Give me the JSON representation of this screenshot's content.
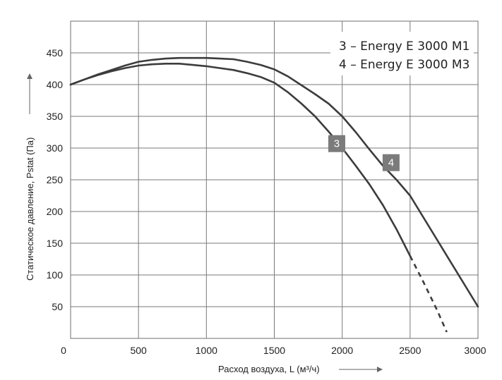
{
  "chart_data": {
    "type": "line",
    "xlabel": "Расход воздуха, L (м³/ч)",
    "ylabel": "Статическое давление, Pstat (Па)",
    "xlim": [
      0,
      3000
    ],
    "ylim": [
      0,
      500
    ],
    "x_ticks": [
      "0",
      "500",
      "1000",
      "1500",
      "2000",
      "2500",
      "3000"
    ],
    "y_ticks": [
      "50",
      "100",
      "150",
      "200",
      "250",
      "300",
      "350",
      "400",
      "450"
    ],
    "grid": true,
    "legend": {
      "placement": "top-right",
      "entries": [
        "3 – Energy E 3000 M1",
        "4 – Energy E 3000 M3"
      ]
    },
    "series": [
      {
        "marker_label": "3",
        "color": "#3c3c3c",
        "x": [
          0,
          100,
          200,
          300,
          400,
          500,
          600,
          700,
          800,
          900,
          1000,
          1100,
          1200,
          1300,
          1400,
          1500,
          1600,
          1700,
          1800,
          1900,
          2000,
          2100,
          2200,
          2300,
          2400,
          2500
        ],
        "y": [
          400,
          408,
          415,
          421,
          426,
          430,
          432,
          433,
          433,
          431,
          429,
          426,
          423,
          418,
          412,
          403,
          388,
          370,
          350,
          326,
          300,
          272,
          243,
          210,
          172,
          130
        ],
        "dashed_x": [
          2500,
          2600,
          2700,
          2770
        ],
        "dashed_y": [
          130,
          88,
          44,
          10
        ]
      },
      {
        "marker_label": "4",
        "color": "#3c3c3c",
        "x": [
          0,
          100,
          200,
          300,
          400,
          500,
          600,
          700,
          800,
          900,
          1000,
          1100,
          1200,
          1300,
          1400,
          1500,
          1600,
          1700,
          1800,
          1900,
          2000,
          2100,
          2200,
          2300,
          2400,
          2500,
          2600,
          2700,
          2800,
          2900,
          3000
        ],
        "y": [
          400,
          408,
          416,
          423,
          430,
          436,
          439,
          441,
          442,
          442,
          442,
          441,
          440,
          436,
          431,
          424,
          413,
          399,
          385,
          370,
          350,
          325,
          298,
          272,
          250,
          225,
          190,
          155,
          120,
          85,
          50
        ]
      }
    ],
    "marker_points": [
      {
        "label": "3",
        "x": 1960,
        "y": 307
      },
      {
        "label": "4",
        "x": 2360,
        "y": 277
      }
    ]
  }
}
